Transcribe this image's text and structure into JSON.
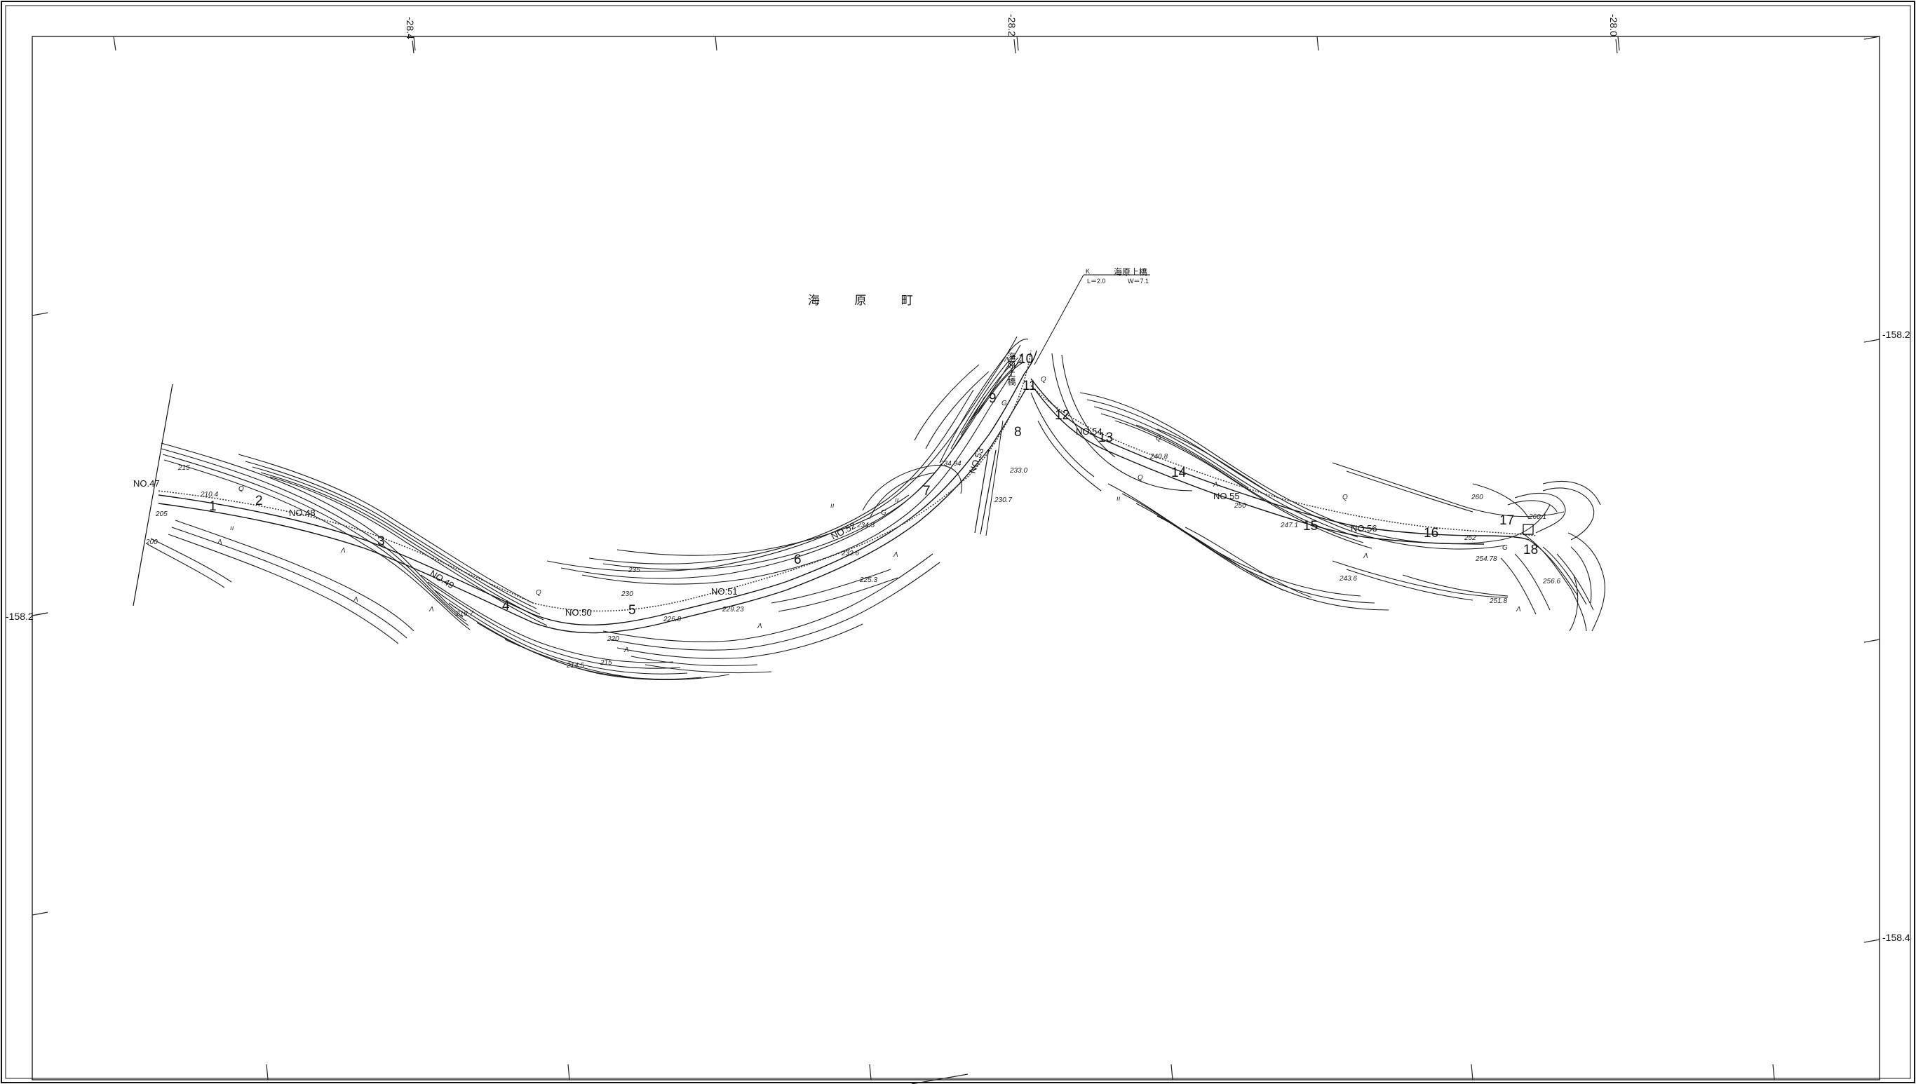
{
  "map": {
    "place_name": "海 原 町",
    "bridge": {
      "symbol": "K",
      "name": "海原上橋",
      "length": "L＝2.0",
      "width": "W＝7.1",
      "vertical_label": "海原上橋"
    },
    "grid_labels": {
      "top": [
        "-28.4",
        "-28.2",
        "-28.0"
      ],
      "left": [
        "-158.2"
      ],
      "right": [
        "-158.2",
        "-158.4"
      ]
    },
    "stations": [
      "NO.47",
      "NO.48",
      "NO.49",
      "NO.50",
      "NO.51",
      "NO.52",
      "NO.53",
      "NO.54",
      "NO.55",
      "NO.56"
    ],
    "sections": [
      "1",
      "2",
      "3",
      "4",
      "5",
      "6",
      "7",
      "8",
      "9",
      "10",
      "11",
      "12",
      "13",
      "14",
      "15",
      "16",
      "17",
      "18"
    ],
    "elevations": [
      "215",
      "210.4",
      "200",
      "205",
      "216.7",
      "214.5",
      "215",
      "220",
      "226.8",
      "229.23",
      "230",
      "232.6",
      "234.5",
      "235",
      "225.3",
      "234.94",
      "233.0",
      "230.7",
      "240.8",
      "243.6",
      "247.1",
      "252",
      "254.78",
      "256.6",
      "251.8",
      "260",
      "260.1",
      "250"
    ],
    "symbols": {
      "wasteland": "Λ",
      "grass": "ıı",
      "gravel": "G",
      "tree": "Q"
    }
  }
}
